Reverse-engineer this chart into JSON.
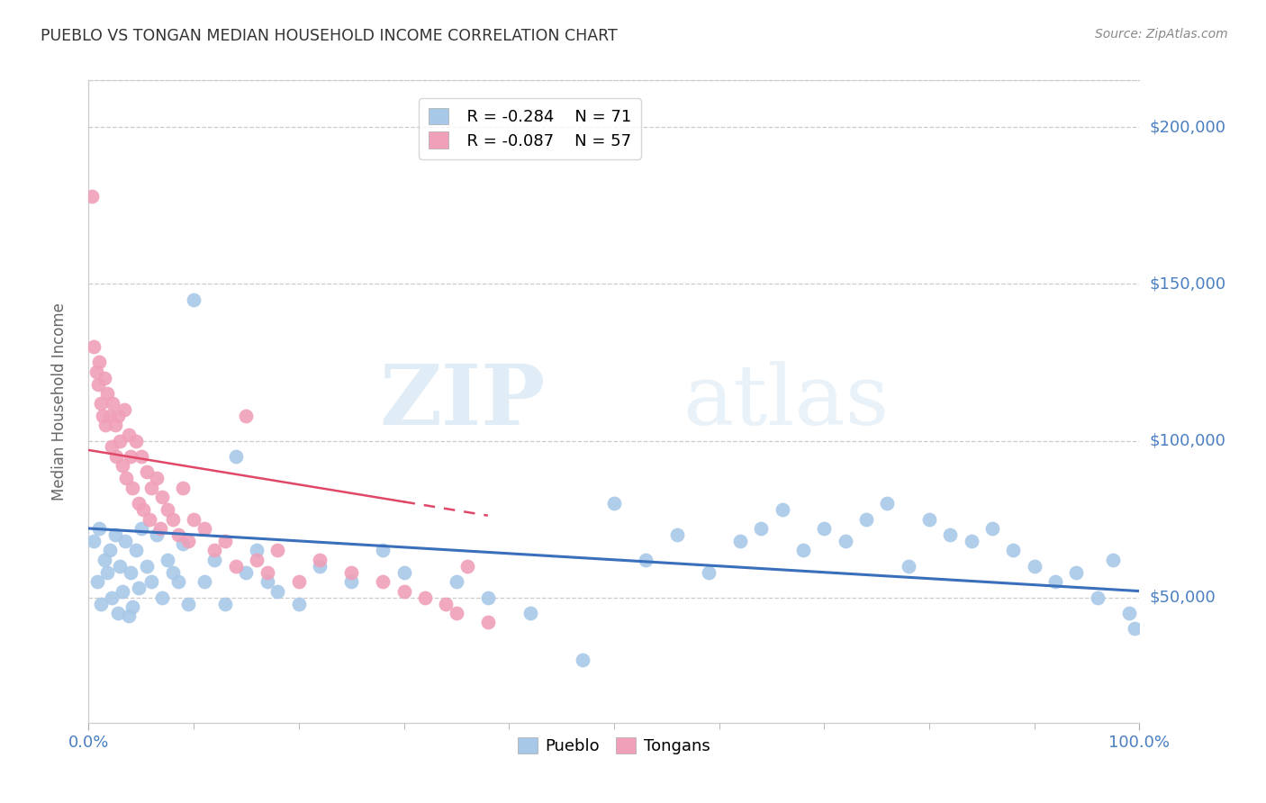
{
  "title": "PUEBLO VS TONGAN MEDIAN HOUSEHOLD INCOME CORRELATION CHART",
  "source": "Source: ZipAtlas.com",
  "ylabel": "Median Household Income",
  "ytick_labels": [
    "$50,000",
    "$100,000",
    "$150,000",
    "$200,000"
  ],
  "ytick_values": [
    50000,
    100000,
    150000,
    200000
  ],
  "ymin": 10000,
  "ymax": 215000,
  "xmin": 0.0,
  "xmax": 1.0,
  "watermark_zip": "ZIP",
  "watermark_atlas": "atlas",
  "legend_pueblo_R": "R = -0.284",
  "legend_pueblo_N": "N = 71",
  "legend_tongan_R": "R = -0.087",
  "legend_tongan_N": "N = 57",
  "pueblo_color": "#a8c8e8",
  "tongan_color": "#f0a0b8",
  "pueblo_line_color": "#3a6fbb",
  "tongan_line_color": "#e04868",
  "pueblo_scatter_x": [
    0.005,
    0.008,
    0.01,
    0.012,
    0.015,
    0.018,
    0.02,
    0.022,
    0.025,
    0.028,
    0.03,
    0.032,
    0.035,
    0.038,
    0.04,
    0.042,
    0.045,
    0.048,
    0.05,
    0.055,
    0.06,
    0.065,
    0.07,
    0.075,
    0.08,
    0.085,
    0.09,
    0.095,
    0.1,
    0.11,
    0.12,
    0.13,
    0.14,
    0.15,
    0.16,
    0.17,
    0.18,
    0.2,
    0.22,
    0.25,
    0.28,
    0.3,
    0.35,
    0.38,
    0.42,
    0.47,
    0.5,
    0.53,
    0.56,
    0.59,
    0.62,
    0.64,
    0.66,
    0.68,
    0.7,
    0.72,
    0.74,
    0.76,
    0.78,
    0.8,
    0.82,
    0.84,
    0.86,
    0.88,
    0.9,
    0.92,
    0.94,
    0.96,
    0.975,
    0.99,
    0.995
  ],
  "pueblo_scatter_y": [
    68000,
    55000,
    72000,
    48000,
    62000,
    58000,
    65000,
    50000,
    70000,
    45000,
    60000,
    52000,
    68000,
    44000,
    58000,
    47000,
    65000,
    53000,
    72000,
    60000,
    55000,
    70000,
    50000,
    62000,
    58000,
    55000,
    67000,
    48000,
    145000,
    55000,
    62000,
    48000,
    95000,
    58000,
    65000,
    55000,
    52000,
    48000,
    60000,
    55000,
    65000,
    58000,
    55000,
    50000,
    45000,
    30000,
    80000,
    62000,
    70000,
    58000,
    68000,
    72000,
    78000,
    65000,
    72000,
    68000,
    75000,
    80000,
    60000,
    75000,
    70000,
    68000,
    72000,
    65000,
    60000,
    55000,
    58000,
    50000,
    62000,
    45000,
    40000
  ],
  "tongan_scatter_x": [
    0.003,
    0.005,
    0.007,
    0.009,
    0.01,
    0.012,
    0.013,
    0.015,
    0.016,
    0.018,
    0.02,
    0.022,
    0.023,
    0.025,
    0.026,
    0.028,
    0.03,
    0.032,
    0.034,
    0.036,
    0.038,
    0.04,
    0.042,
    0.045,
    0.048,
    0.05,
    0.052,
    0.055,
    0.058,
    0.06,
    0.065,
    0.068,
    0.07,
    0.075,
    0.08,
    0.085,
    0.09,
    0.095,
    0.1,
    0.11,
    0.12,
    0.13,
    0.14,
    0.15,
    0.16,
    0.17,
    0.18,
    0.2,
    0.22,
    0.25,
    0.28,
    0.3,
    0.32,
    0.34,
    0.35,
    0.36,
    0.38
  ],
  "tongan_scatter_y": [
    178000,
    130000,
    122000,
    118000,
    125000,
    112000,
    108000,
    120000,
    105000,
    115000,
    108000,
    98000,
    112000,
    105000,
    95000,
    108000,
    100000,
    92000,
    110000,
    88000,
    102000,
    95000,
    85000,
    100000,
    80000,
    95000,
    78000,
    90000,
    75000,
    85000,
    88000,
    72000,
    82000,
    78000,
    75000,
    70000,
    85000,
    68000,
    75000,
    72000,
    65000,
    68000,
    60000,
    108000,
    62000,
    58000,
    65000,
    55000,
    62000,
    58000,
    55000,
    52000,
    50000,
    48000,
    45000,
    60000,
    42000
  ],
  "background_color": "#ffffff",
  "grid_color": "#cccccc",
  "title_color": "#333333",
  "axis_label_color": "#4a7fc1",
  "right_ytick_color": "#4a7fc1",
  "pueblo_line_intercept": 72000,
  "pueblo_line_slope": -20000,
  "tongan_line_intercept": 97000,
  "tongan_line_slope": -55000
}
